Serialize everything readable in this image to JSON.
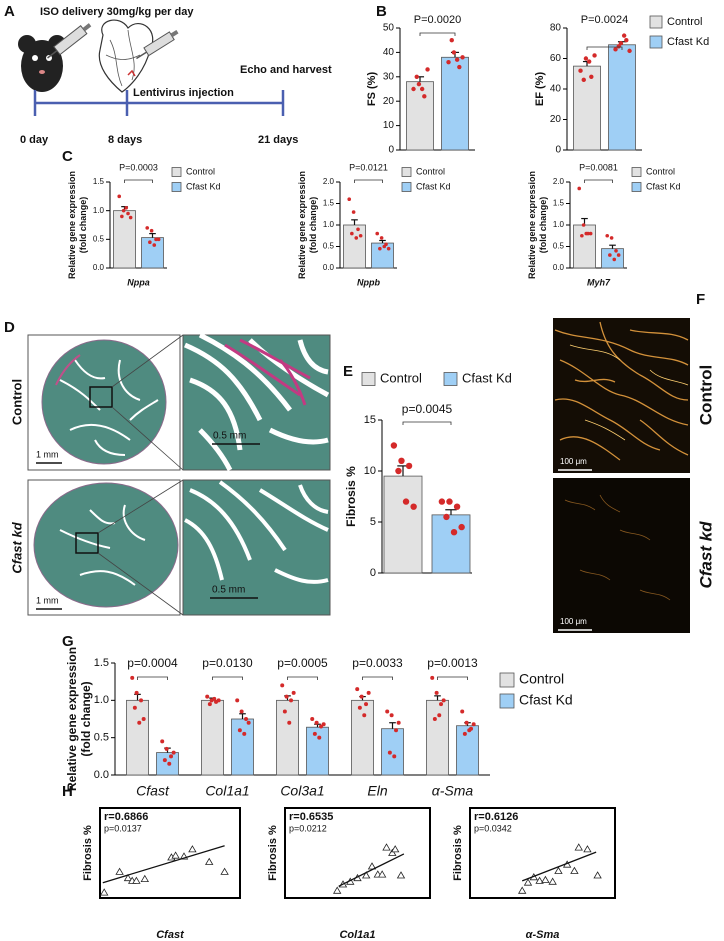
{
  "panel_labels": [
    "A",
    "B",
    "C",
    "D",
    "E",
    "F",
    "G",
    "H"
  ],
  "schematic": {
    "treatment": "ISO delivery 30mg/kg per day",
    "injection": "Lentivirus injection",
    "endpoint": "Echo and harvest",
    "timepoints": [
      "0 day",
      "8 days",
      "21 days"
    ]
  },
  "histology": {
    "rows": [
      "Control",
      "Cfast kd"
    ],
    "scale_bars": [
      "1 mm",
      "0.5 mm",
      "1 mm",
      "0.5 mm"
    ]
  },
  "staining": {
    "rows": [
      "Control",
      "Cfast kd"
    ],
    "scale_bars": [
      "100 μm",
      "100 μm"
    ]
  },
  "chart_data": [
    {
      "type": "bar",
      "ylabel": [
        "FS (%)"
      ],
      "categories": [
        null
      ],
      "ylim": [
        0,
        50
      ],
      "yticks": [
        0,
        10,
        20,
        30,
        40,
        50
      ],
      "pvalues": [
        "P=0.0020"
      ],
      "legend": false,
      "series": [
        {
          "name": "Control",
          "color": "#e2e2e2",
          "values": [
            28
          ],
          "errors": [
            2
          ],
          "points": [
            [
              25,
              27,
              22,
              30,
              25,
              33
            ]
          ]
        },
        {
          "name": "Cfast Kd",
          "color": "#9fcff5",
          "values": [
            38
          ],
          "errors": [
            2
          ],
          "points": [
            [
              36,
              40,
              34,
              45,
              37,
              38
            ]
          ]
        }
      ]
    },
    {
      "type": "bar",
      "ylabel": [
        "EF (%)"
      ],
      "categories": [
        null
      ],
      "ylim": [
        0,
        80
      ],
      "yticks": [
        0,
        20,
        40,
        60,
        80
      ],
      "pvalues": [
        "P=0.0024"
      ],
      "legend": true,
      "series": [
        {
          "name": "Control",
          "color": "#e2e2e2",
          "values": [
            55
          ],
          "errors": [
            3
          ],
          "points": [
            [
              52,
              60,
              48,
              46,
              58,
              62
            ]
          ]
        },
        {
          "name": "Cfast Kd",
          "color": "#9fcff5",
          "values": [
            69
          ],
          "errors": [
            2
          ],
          "points": [
            [
              66,
              70,
              72,
              68,
              75,
              65
            ]
          ]
        }
      ]
    },
    {
      "type": "bar",
      "ylabel": [
        "Relative gene expression",
        "(fold change)"
      ],
      "categories": [
        "Nppa"
      ],
      "ylim": [
        0,
        1.5
      ],
      "yticks": [
        {
          "value": 0,
          "label": "0.0"
        },
        0.5,
        {
          "value": 1,
          "label": "1.0"
        },
        1.5
      ],
      "pvalues": [
        "P=0.0003"
      ],
      "legend": true,
      "series": [
        {
          "name": "Control",
          "color": "#e2e2e2",
          "values": [
            1.0
          ],
          "errors": [
            0.07
          ],
          "points": [
            [
              1.25,
              1.0,
              0.95,
              0.9,
              1.05,
              0.88
            ]
          ]
        },
        {
          "name": "Cfast Kd",
          "color": "#9fcff5",
          "values": [
            0.53
          ],
          "errors": [
            0.07
          ],
          "points": [
            [
              0.7,
              0.65,
              0.5,
              0.45,
              0.4,
              0.5
            ]
          ]
        }
      ]
    },
    {
      "type": "bar",
      "ylabel": [
        "Relative gene expression",
        "(fold change)"
      ],
      "categories": [
        "Nppb"
      ],
      "ylim": [
        0,
        2
      ],
      "yticks": [
        {
          "value": 0,
          "label": "0.0"
        },
        0.5,
        {
          "value": 1,
          "label": "1.0"
        },
        1.5,
        {
          "value": 2,
          "label": "2.0"
        }
      ],
      "pvalues": [
        "P=0.0121"
      ],
      "legend": true,
      "series": [
        {
          "name": "Control",
          "color": "#e2e2e2",
          "values": [
            1.0
          ],
          "errors": [
            0.12
          ],
          "points": [
            [
              1.6,
              1.3,
              0.9,
              0.8,
              0.7,
              0.75
            ]
          ]
        },
        {
          "name": "Cfast Kd",
          "color": "#9fcff5",
          "values": [
            0.58
          ],
          "errors": [
            0.06
          ],
          "points": [
            [
              0.8,
              0.7,
              0.55,
              0.45,
              0.5,
              0.45
            ]
          ]
        }
      ]
    },
    {
      "type": "bar",
      "ylabel": [
        "Relative gene expression",
        "(fold change)"
      ],
      "categories": [
        "Myh7"
      ],
      "ylim": [
        0,
        2
      ],
      "yticks": [
        {
          "value": 0,
          "label": "0.0"
        },
        0.5,
        {
          "value": 1,
          "label": "1.0"
        },
        1.5,
        {
          "value": 2,
          "label": "2.0"
        }
      ],
      "pvalues": [
        "P=0.0081"
      ],
      "legend": true,
      "series": [
        {
          "name": "Control",
          "color": "#e2e2e2",
          "values": [
            1.0
          ],
          "errors": [
            0.15
          ],
          "points": [
            [
              1.85,
              1.0,
              0.8,
              0.75,
              0.8,
              0.8
            ]
          ]
        },
        {
          "name": "Cfast Kd",
          "color": "#9fcff5",
          "values": [
            0.45
          ],
          "errors": [
            0.08
          ],
          "points": [
            [
              0.75,
              0.7,
              0.4,
              0.3,
              0.2,
              0.3
            ]
          ]
        }
      ]
    },
    {
      "type": "bar",
      "ylabel": [
        "Fibrosis %"
      ],
      "categories": [
        null
      ],
      "ylim": [
        0,
        15
      ],
      "yticks": [
        0,
        5,
        10,
        15
      ],
      "pvalues": [
        "p=0.0045"
      ],
      "legend": true,
      "series": [
        {
          "name": "Control",
          "color": "#e2e2e2",
          "values": [
            9.5
          ],
          "errors": [
            1.0
          ],
          "points": [
            [
              12.5,
              11,
              10.5,
              10,
              7,
              6.5
            ]
          ]
        },
        {
          "name": "Cfast Kd",
          "color": "#9fcff5",
          "values": [
            5.7
          ],
          "errors": [
            0.5
          ],
          "points": [
            [
              7,
              7,
              6.5,
              5.5,
              4,
              4.5
            ]
          ]
        }
      ]
    },
    {
      "type": "bar",
      "ylabel": [
        "Relative gene expression",
        "(fold change)"
      ],
      "categories": [
        "Cfast",
        "Col1a1",
        "Col3a1",
        "Eln",
        "α-Sma"
      ],
      "ylim": [
        0,
        1.5
      ],
      "yticks": [
        {
          "value": 0,
          "label": "0.0"
        },
        0.5,
        {
          "value": 1,
          "label": "1.0"
        },
        1.5
      ],
      "pvalues": [
        "p=0.0004",
        "p=0.0130",
        "p=0.0005",
        "p=0.0033",
        "p=0.0013"
      ],
      "legend": true,
      "series": [
        {
          "name": "Control",
          "color": "#e2e2e2",
          "values": [
            1.0,
            1.0,
            1.0,
            1.0,
            1.0
          ],
          "errors": [
            0.08,
            0.03,
            0.06,
            0.05,
            0.06
          ],
          "points": [
            [
              1.3,
              1.1,
              1.0,
              0.9,
              0.7,
              0.75
            ],
            [
              1.05,
              1.0,
              0.98,
              0.95,
              1.02,
              1.0
            ],
            [
              1.2,
              1.05,
              1.0,
              0.85,
              0.7,
              1.1
            ],
            [
              1.15,
              1.05,
              0.95,
              0.9,
              0.8,
              1.1
            ],
            [
              1.3,
              1.1,
              0.95,
              0.75,
              0.8,
              1.0
            ]
          ]
        },
        {
          "name": "Cfast Kd",
          "color": "#9fcff5",
          "values": [
            0.3,
            0.75,
            0.64,
            0.62,
            0.66
          ],
          "errors": [
            0.06,
            0.07,
            0.04,
            0.08,
            0.04
          ],
          "points": [
            [
              0.45,
              0.35,
              0.25,
              0.2,
              0.15,
              0.3
            ],
            [
              1.0,
              0.85,
              0.75,
              0.6,
              0.55,
              0.7
            ],
            [
              0.75,
              0.7,
              0.65,
              0.55,
              0.5,
              0.68
            ],
            [
              0.85,
              0.8,
              0.6,
              0.3,
              0.25,
              0.7
            ],
            [
              0.85,
              0.7,
              0.62,
              0.55,
              0.6,
              0.68
            ]
          ]
        }
      ]
    },
    {
      "type": "scatter",
      "r": "r=0.6866",
      "p": "p=0.0137",
      "xlabel": "Cfast",
      "ylabel": "Fibrosis %",
      "xlim": [
        0,
        10
      ],
      "ylim": [
        0,
        10
      ],
      "x": [
        0.3,
        1.4,
        2.0,
        2.3,
        2.6,
        3.2,
        5.1,
        5.4,
        6.0,
        6.6,
        7.8,
        8.9
      ],
      "y": [
        0.6,
        2.9,
        2.2,
        1.9,
        1.9,
        2.1,
        4.5,
        4.7,
        4.6,
        5.4,
        4.0,
        2.9
      ],
      "fit": {
        "x": [
          0.2,
          8.9
        ],
        "y": [
          1.7,
          5.8
        ]
      }
    },
    {
      "type": "scatter",
      "r": "r=0.6535",
      "p": "p=0.0212",
      "xlabel": "Col1a1",
      "ylabel": "Fibrosis %",
      "xlim": [
        0,
        10
      ],
      "ylim": [
        0,
        10
      ],
      "x": [
        3.6,
        4.0,
        4.5,
        5.0,
        5.6,
        6.0,
        6.4,
        6.7,
        7.0,
        7.4,
        7.6,
        8.0
      ],
      "y": [
        0.8,
        1.5,
        1.8,
        2.2,
        2.5,
        3.5,
        2.6,
        2.6,
        5.6,
        5.0,
        5.4,
        2.5
      ],
      "fit": {
        "x": [
          3.7,
          8.2
        ],
        "y": [
          1.3,
          4.9
        ]
      }
    },
    {
      "type": "scatter",
      "r": "r=0.6126",
      "p": "p=0.0342",
      "xlabel": "α-Sma",
      "ylabel": "Fibrosis %",
      "xlim": [
        0,
        10
      ],
      "ylim": [
        0,
        10
      ],
      "x": [
        3.6,
        4.0,
        4.4,
        4.8,
        5.2,
        5.7,
        6.1,
        6.7,
        7.2,
        7.5,
        8.1,
        8.8
      ],
      "y": [
        0.8,
        1.7,
        2.3,
        1.9,
        2.0,
        1.8,
        3.0,
        3.7,
        3.0,
        5.6,
        5.4,
        2.5
      ],
      "fit": {
        "x": [
          3.6,
          8.7
        ],
        "y": [
          1.9,
          5.1
        ]
      }
    }
  ]
}
